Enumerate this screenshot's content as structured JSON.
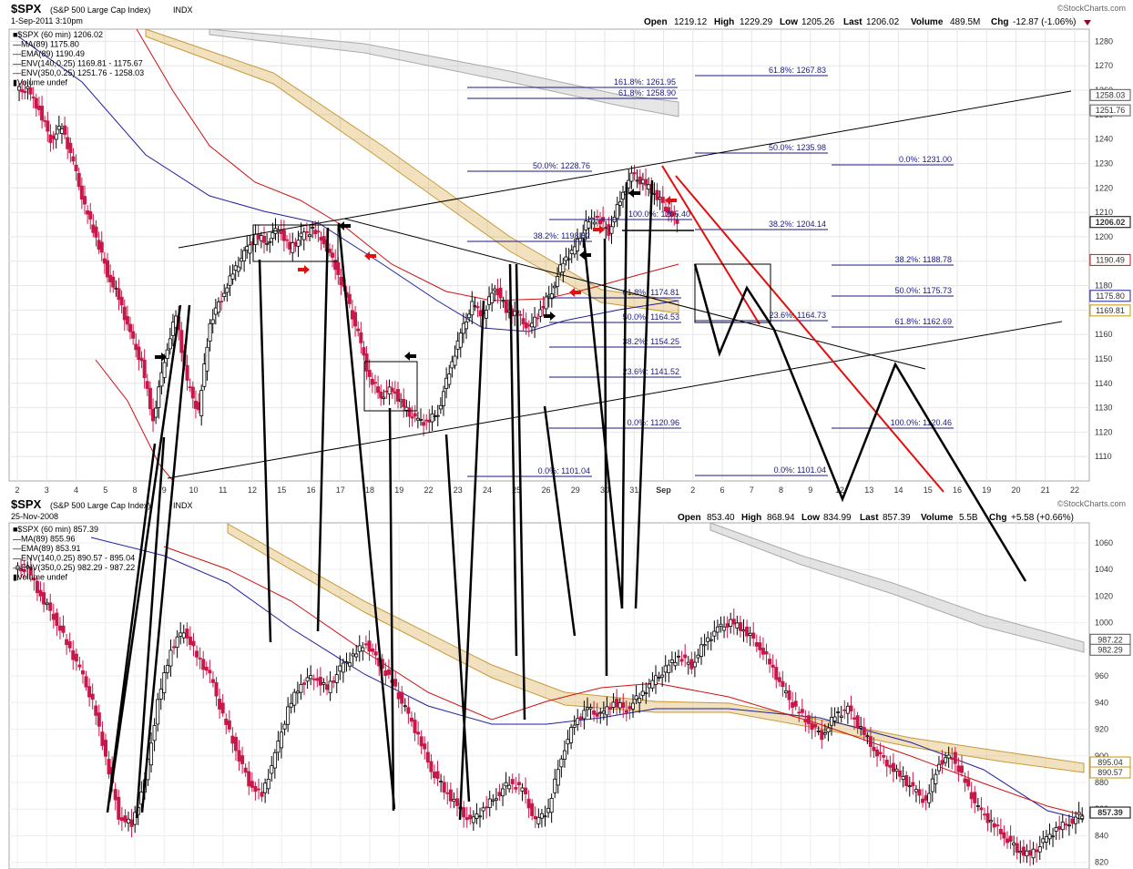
{
  "watermark": "©StockCharts.com",
  "top_chart": {
    "symbol": "$SPX",
    "name": "(S&P 500 Large Cap Index)",
    "exchange": "INDX",
    "date": "1-Sep-2011 3:10pm",
    "ohlc": {
      "open_label": "Open",
      "open": "1219.12",
      "high_label": "High",
      "high": "1229.29",
      "low_label": "Low",
      "low": "1205.26",
      "last_label": "Last",
      "last": "1206.02",
      "volume_label": "Volume",
      "volume": "489.5M",
      "chg_label": "Chg",
      "chg": "-12.87 (-1.06%)"
    },
    "legend": [
      {
        "text": "■$SPX (60 min) 1206.02",
        "color": "#000000"
      },
      {
        "text": "—MA(89) 1175.80",
        "color": "#1f1f9e"
      },
      {
        "text": "—EMA(89) 1190.49",
        "color": "#d01010"
      },
      {
        "text": "—ENV(140,0.25) 1169.81 - 1175.67",
        "color": "#c8940a"
      },
      {
        "text": "—ENV(350,0.25) 1251.76 - 1258.03",
        "color": "#888888"
      },
      {
        "text": "▮Volume undef",
        "color": "#000000"
      }
    ],
    "x_ticks": [
      "2",
      "3",
      "4",
      "5",
      "8",
      "9",
      "10",
      "11",
      "12",
      "15",
      "16",
      "17",
      "18",
      "19",
      "22",
      "23",
      "24",
      "25",
      "26",
      "29",
      "30",
      "31",
      "Sep",
      "2",
      "6",
      "7",
      "8",
      "9",
      "12",
      "13",
      "14",
      "15",
      "16",
      "19",
      "20",
      "21",
      "22"
    ],
    "y_ticks": [
      "1110",
      "1120",
      "1130",
      "1140",
      "1150",
      "1160",
      "1170",
      "1180",
      "1190",
      "1200",
      "1210",
      "1220",
      "1230",
      "1240",
      "1250",
      "1260",
      "1270",
      "1280"
    ],
    "y_labels": [
      {
        "text": "1258.03",
        "value": 1258.03,
        "color": "#555555"
      },
      {
        "text": "1251.76",
        "value": 1251.76,
        "color": "#555555"
      },
      {
        "text": "1206.02",
        "value": 1206.02,
        "color": "#000000"
      },
      {
        "text": "1190.49",
        "value": 1190.49,
        "color": "#d01010"
      },
      {
        "text": "1175.80",
        "value": 1175.8,
        "color": "#1f1f9e"
      },
      {
        "text": "1169.81",
        "value": 1169.81,
        "color": "#c8940a"
      }
    ],
    "fib_labels": [
      "61.8%: 1267.83",
      "161.8%: 1261.95",
      "61.8%: 1258.90",
      "50.0%: 1235.98",
      "0.0%: 1231.00",
      "50.0%: 1228.76",
      "100.0%: 1205.40",
      "38.2%: 1204.14",
      "38.2%: 1198.82",
      "38.2%: 1188.78",
      "61.8%: 1174.81",
      "50.0%: 1175.73",
      "50.0%: 1164.53",
      "23.6%: 1164.73",
      "61.8%: 1162.69",
      "38.2%: 1154.25",
      "23.6%: 1141.52",
      "0.0%: 1120.96",
      "100.0%: 1120.46",
      "0.0%: 1101.04",
      "0.0%: 1101.04"
    ]
  },
  "bottom_chart": {
    "symbol": "$SPX",
    "name": "(S&P 500 Large Cap Index)",
    "exchange": "INDX",
    "date": "25-Nov-2008",
    "ohlc": {
      "open_label": "Open",
      "open": "853.40",
      "high_label": "High",
      "high": "868.94",
      "low_label": "Low",
      "low": "834.99",
      "last_label": "Last",
      "last": "857.39",
      "volume_label": "Volume",
      "volume": "5.5B",
      "chg_label": "Chg",
      "chg": "+5.58 (+0.66%)"
    },
    "legend": [
      {
        "text": "■$SPX (60 min) 857.39",
        "color": "#000000"
      },
      {
        "text": "—MA(89) 855.96",
        "color": "#1f1f9e"
      },
      {
        "text": "—EMA(89) 853.91",
        "color": "#d01010"
      },
      {
        "text": "—ENV(140,0.25) 890.57 - 895.04",
        "color": "#c8940a"
      },
      {
        "text": "—ENV(350,0.25) 982.29 - 987.22",
        "color": "#888888"
      },
      {
        "text": "▮Volume undef",
        "color": "#000000"
      }
    ],
    "y_ticks": [
      "820",
      "840",
      "860",
      "880",
      "900",
      "920",
      "940",
      "960",
      "980",
      "1000",
      "1020",
      "1040",
      "1060"
    ],
    "y_labels": [
      {
        "text": "987.22",
        "value": 987.22,
        "color": "#555555"
      },
      {
        "text": "982.29",
        "value": 982.29,
        "color": "#555555"
      },
      {
        "text": "895.04",
        "value": 895.04,
        "color": "#c8940a"
      },
      {
        "text": "890.57",
        "value": 890.57,
        "color": "#c8940a"
      },
      {
        "text": "857.39",
        "value": 857.39,
        "color": "#000000"
      }
    ]
  },
  "chart_data": [
    {
      "type": "line",
      "title": "$SPX (S&P 500 Large Cap Index) INDX",
      "subtitle": "1-Sep-2011 3:10pm",
      "ylim": [
        1100,
        1285
      ],
      "close_path": [
        1260,
        1252,
        1240,
        1245,
        1230,
        1212,
        1200,
        1185,
        1175,
        1160,
        1148,
        1125,
        1150,
        1168,
        1140,
        1128,
        1165,
        1175,
        1185,
        1193,
        1200,
        1198,
        1204,
        1195,
        1200,
        1203,
        1198,
        1188,
        1175,
        1160,
        1142,
        1135,
        1138,
        1130,
        1125,
        1124,
        1128,
        1145,
        1160,
        1172,
        1168,
        1180,
        1170,
        1168,
        1162,
        1170,
        1178,
        1190,
        1195,
        1205,
        1208,
        1202,
        1215,
        1225,
        1222,
        1218,
        1212,
        1206
      ],
      "series": [
        {
          "name": "MA(89)",
          "last": 1175.8
        },
        {
          "name": "EMA(89)",
          "last": 1190.49
        },
        {
          "name": "ENV(140,0.25)",
          "last": "1169.81 - 1175.67"
        },
        {
          "name": "ENV(350,0.25)",
          "last": "1251.76 - 1258.03"
        }
      ]
    },
    {
      "type": "line",
      "title": "$SPX (S&P 500 Large Cap Index) INDX",
      "subtitle": "25-Nov-2008",
      "ylim": [
        815,
        1075
      ],
      "close_path": [
        1040,
        1020,
        1005,
        985,
        965,
        940,
        900,
        855,
        848,
        880,
        940,
        980,
        995,
        975,
        960,
        930,
        905,
        880,
        870,
        900,
        935,
        955,
        960,
        950,
        965,
        975,
        985,
        970,
        955,
        935,
        915,
        890,
        875,
        862,
        850,
        860,
        870,
        880,
        875,
        850,
        860,
        900,
        925,
        935,
        930,
        940,
        935,
        945,
        955,
        965,
        975,
        968,
        985,
        995,
        1000,
        995,
        985,
        970,
        950,
        935,
        925,
        915,
        930,
        935,
        920,
        905,
        895,
        885,
        875,
        865,
        895,
        900,
        880,
        860,
        850,
        840,
        830,
        825,
        835,
        845,
        850,
        857
      ],
      "series": [
        {
          "name": "MA(89)",
          "last": 855.96
        },
        {
          "name": "EMA(89)",
          "last": 853.91
        },
        {
          "name": "ENV(140,0.25)",
          "last": "890.57 - 895.04"
        },
        {
          "name": "ENV(350,0.25)",
          "last": "982.29 - 987.22"
        }
      ]
    }
  ]
}
